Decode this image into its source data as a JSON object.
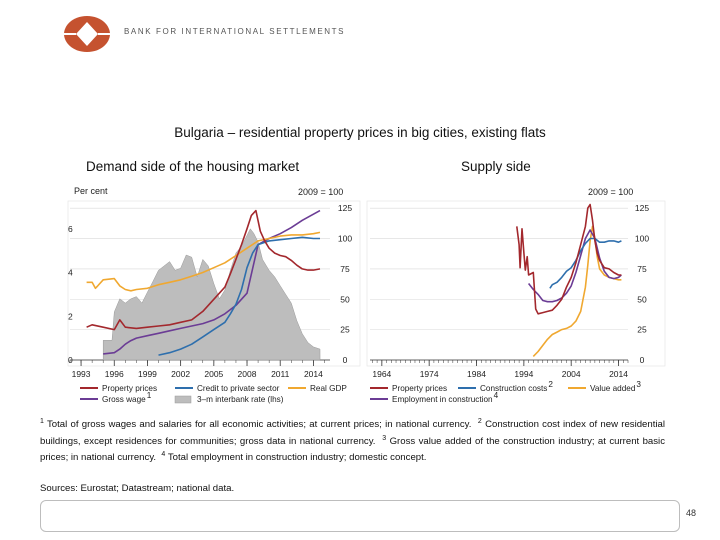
{
  "header": {
    "org_name": "BANK FOR INTERNATIONAL SETTLEMENTS"
  },
  "slide": {
    "title": "Bulgaria – residential property prices in big cities, existing flats"
  },
  "panels": {
    "left": {
      "subtitle": "Demand side of the housing market",
      "lhs_unit": "Per cent",
      "rhs_unit": "2009 = 100",
      "legend": [
        "Property prices",
        "Credit to private sector",
        "Real GDP",
        "Gross wage",
        "3–m interbank rate (lhs)"
      ],
      "legend_sup": {
        "gross_wage": "1"
      }
    },
    "right": {
      "subtitle": "Supply side",
      "rhs_unit": "2009 = 100",
      "legend": [
        "Property prices",
        "Construction costs",
        "Value added",
        "Employment in construction"
      ],
      "legend_sup": {
        "construction_costs": "2",
        "value_added": "3",
        "employment": "4"
      }
    }
  },
  "colors": {
    "property": "#a3282d",
    "credit": "#2e6fad",
    "gdp": "#f0a830",
    "wage": "#6b3c95",
    "rate_fill": "#bdbdbd",
    "rate_stroke": "#9a9a9a",
    "grid": "#d9d9d9",
    "ticks": "#333333"
  },
  "chart_data": [
    {
      "type": "line",
      "title": "Demand side of the housing market",
      "x_range": [
        1992,
        2015.5
      ],
      "x_ticks": [
        1993,
        1996,
        1999,
        2002,
        2005,
        2008,
        2011,
        2014
      ],
      "lhs": {
        "unit": "Per cent",
        "ylim": [
          0,
          7.5
        ],
        "ticks": [
          0,
          2,
          4,
          6
        ]
      },
      "rhs": {
        "unit": "2009 = 100",
        "ylim": [
          0,
          135
        ],
        "ticks": [
          0,
          25,
          50,
          75,
          100,
          125
        ]
      },
      "series": [
        {
          "name": "3–m interbank rate (lhs)",
          "axis": "lhs",
          "kind": "area",
          "key": "rate",
          "x": [
            1995.0,
            1995.8,
            1996.0,
            1996.5,
            1997.0,
            1997.5,
            1998.0,
            1998.5,
            1999.0,
            1999.5,
            2000.0,
            2000.5,
            2001.0,
            2001.5,
            2002.0,
            2002.5,
            2003.0,
            2003.5,
            2004.0,
            2004.5,
            2005.0,
            2005.5,
            2006.0,
            2006.5,
            2007.0,
            2007.5,
            2008.0,
            2008.3,
            2008.6,
            2009.0,
            2009.4,
            2010.0,
            2010.5,
            2011.0,
            2011.5,
            2012.0,
            2012.5,
            2013.0,
            2013.5,
            2014.0,
            2014.6
          ],
          "values": [
            0.9,
            0.9,
            2.2,
            2.8,
            2.6,
            2.8,
            2.9,
            2.6,
            3.1,
            3.6,
            4.1,
            4.3,
            4.5,
            4.1,
            4.2,
            4.8,
            4.7,
            3.8,
            4.6,
            4.3,
            3.5,
            2.8,
            3.2,
            4.1,
            4.9,
            5.2,
            5.7,
            6.0,
            5.8,
            5.4,
            4.6,
            4.1,
            3.8,
            3.4,
            3.0,
            2.6,
            1.8,
            1.2,
            0.8,
            0.6,
            0.5
          ]
        },
        {
          "name": "Gross wage",
          "axis": "rhs",
          "key": "wage",
          "x": [
            1995.0,
            1996.0,
            1996.5,
            1997.0,
            1997.5,
            1998.0,
            1999.0,
            2000.0,
            2001.0,
            2002.0,
            2003.0,
            2004.0,
            2005.0,
            2006.0,
            2007.0,
            2008.0,
            2009.0,
            2010.0,
            2011.0,
            2012.0,
            2013.0,
            2014.0,
            2014.6
          ],
          "values": [
            5,
            6,
            9,
            13,
            16,
            18,
            20,
            22,
            24,
            26,
            28,
            30,
            33,
            38,
            45,
            55,
            95,
            100,
            104,
            109,
            115,
            120,
            123
          ]
        },
        {
          "name": "Real GDP",
          "axis": "rhs",
          "key": "gdp",
          "x": [
            1993.5,
            1994.0,
            1994.3,
            1994.5,
            1995.0,
            1996.0,
            1996.5,
            1997.0,
            1997.5,
            1998.0,
            1999.0,
            2000.0,
            2001.0,
            2002.0,
            2003.0,
            2004.0,
            2005.0,
            2006.0,
            2007.0,
            2008.0,
            2009.0,
            2010.0,
            2011.0,
            2012.0,
            2013.0,
            2014.0,
            2014.6
          ],
          "values": [
            64,
            64,
            59,
            61,
            66,
            67,
            61,
            58,
            57,
            58,
            59,
            62,
            64,
            66,
            69,
            72,
            76,
            80,
            86,
            92,
            98,
            100,
            102,
            103,
            103,
            104,
            105
          ]
        },
        {
          "name": "Credit to private sector",
          "axis": "rhs",
          "key": "credit",
          "x": [
            2000.0,
            2001.0,
            2002.0,
            2003.0,
            2004.0,
            2005.0,
            2006.0,
            2006.5,
            2007.0,
            2007.5,
            2008.0,
            2008.5,
            2009.0,
            2010.0,
            2011.0,
            2012.0,
            2013.0,
            2014.0,
            2014.6
          ],
          "values": [
            4,
            6,
            9,
            13,
            19,
            25,
            31,
            38,
            46,
            58,
            76,
            88,
            95,
            98,
            99,
            100,
            101,
            100,
            100
          ]
        },
        {
          "name": "Property prices",
          "axis": "rhs",
          "key": "property",
          "x": [
            1993.5,
            1994.0,
            1995.0,
            1996.0,
            1996.5,
            1997.0,
            1998.0,
            1999.0,
            2000.0,
            2001.0,
            2002.0,
            2003.0,
            2004.0,
            2005.0,
            2006.0,
            2006.5,
            2007.0,
            2007.5,
            2008.0,
            2008.4,
            2008.8,
            2009.2,
            2009.6,
            2010.0,
            2010.5,
            2011.0,
            2011.5,
            2012.0,
            2012.5,
            2013.0,
            2013.5,
            2014.0,
            2014.6
          ],
          "values": [
            27,
            29,
            27,
            25,
            33,
            27,
            26,
            27,
            28,
            29,
            31,
            33,
            40,
            50,
            60,
            71,
            83,
            95,
            108,
            119,
            123,
            106,
            98,
            92,
            88,
            86,
            85,
            82,
            78,
            75,
            74,
            74,
            75
          ]
        }
      ],
      "legend_position": "bottom"
    },
    {
      "type": "line",
      "title": "Supply side",
      "x_range": [
        1961.5,
        2016
      ],
      "x_ticks": [
        1964,
        1974,
        1984,
        1994,
        2004,
        2014
      ],
      "rhs": {
        "unit": "2009 = 100",
        "ylim": [
          0,
          135
        ],
        "ticks": [
          0,
          25,
          50,
          75,
          100,
          125
        ]
      },
      "series": [
        {
          "name": "Value added",
          "axis": "rhs",
          "key": "gdp",
          "x": [
            1996.0,
            1997.0,
            1998.0,
            1999.0,
            2000.0,
            2001.0,
            2002.0,
            2003.0,
            2004.0,
            2005.0,
            2006.0,
            2007.0,
            2007.5,
            2008.0,
            2008.5,
            2009.0,
            2009.5,
            2010.0,
            2011.0,
            2012.0,
            2013.0,
            2014.0,
            2014.6
          ],
          "values": [
            3,
            7,
            12,
            17,
            21,
            23,
            25,
            26,
            28,
            32,
            40,
            60,
            78,
            98,
            110,
            100,
            85,
            75,
            70,
            68,
            67,
            66,
            66
          ]
        },
        {
          "name": "Employment in construction",
          "axis": "rhs",
          "key": "wage",
          "x": [
            1995.0,
            1996.0,
            1997.0,
            1998.0,
            1999.0,
            2000.0,
            2001.0,
            2002.0,
            2003.0,
            2004.0,
            2005.0,
            2006.0,
            2007.0,
            2008.0,
            2009.0,
            2010.0,
            2011.0,
            2012.0,
            2013.0,
            2014.0,
            2014.6
          ],
          "values": [
            63,
            58,
            54,
            49,
            48,
            48,
            49,
            51,
            55,
            61,
            72,
            86,
            100,
            107,
            100,
            84,
            73,
            68,
            67,
            68,
            70
          ]
        },
        {
          "name": "Construction costs",
          "axis": "rhs",
          "key": "credit",
          "x": [
            1999.5,
            2000.0,
            2001.0,
            2002.0,
            2003.0,
            2004.0,
            2005.0,
            2006.0,
            2007.0,
            2008.0,
            2009.0,
            2010.0,
            2011.0,
            2012.0,
            2013.0,
            2014.0,
            2014.6
          ],
          "values": [
            59,
            62,
            64,
            68,
            73,
            76,
            82,
            90,
            96,
            100,
            100,
            97,
            97,
            98,
            98,
            97,
            98
          ]
        },
        {
          "name": "Property prices",
          "axis": "rhs",
          "key": "property",
          "x": [
            1992.5,
            1993.0,
            1993.2,
            1993.6,
            1994.0,
            1994.3,
            1994.7,
            1995.0,
            1996.0,
            1996.5,
            1997.0,
            1998.0,
            1999.0,
            2000.0,
            2001.0,
            2002.0,
            2003.0,
            2004.0,
            2005.0,
            2006.0,
            2007.0,
            2007.5,
            2008.0,
            2008.5,
            2009.0,
            2009.5,
            2010.0,
            2011.0,
            2012.0,
            2013.0,
            2014.0,
            2014.6
          ],
          "values": [
            110,
            95,
            76,
            108,
            88,
            74,
            85,
            70,
            72,
            42,
            38,
            39,
            40,
            41,
            45,
            50,
            60,
            68,
            80,
            95,
            110,
            125,
            128,
            115,
            98,
            88,
            82,
            76,
            75,
            72,
            70,
            70
          ]
        }
      ],
      "legend_position": "bottom"
    }
  ],
  "footnotes": {
    "n1": "Total of gross wages and salaries for all economic activities; at current prices; in national currency.",
    "n2": "Construction cost index of new residential buildings, except residences for communities; gross data in national currency.",
    "n3": "Gross value added of the construction industry; at current basic prices; in national currency.",
    "n4": "Total employment in construction industry; domestic concept.",
    "marks": [
      "1",
      "2",
      "3",
      "4"
    ]
  },
  "sources": "Sources: Eurostat; Datastream; national data.",
  "page": {
    "number": "48"
  }
}
